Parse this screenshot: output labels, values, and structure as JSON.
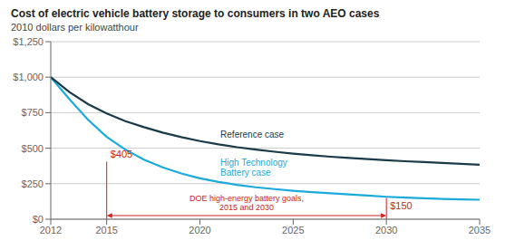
{
  "chart_data": {
    "type": "line",
    "title": "Cost of electric vehicle battery storage to consumers in two AEO cases",
    "subtitle": "2010 dollars per kilowatthour",
    "x": [
      2012,
      2013,
      2014,
      2015,
      2016,
      2017,
      2018,
      2019,
      2020,
      2021,
      2022,
      2023,
      2024,
      2025,
      2026,
      2027,
      2028,
      2029,
      2030,
      2031,
      2032,
      2033,
      2034,
      2035
    ],
    "series": [
      {
        "name": "High Technology\nBattery case",
        "color": "#1aabdb",
        "values": [
          1000,
          845,
          700,
          580,
          490,
          420,
          365,
          322,
          288,
          262,
          242,
          225,
          212,
          200,
          190,
          182,
          174,
          166,
          158,
          152,
          147,
          143,
          140,
          137
        ]
      },
      {
        "name": "Reference case",
        "color": "#1a3a4a",
        "values": [
          1000,
          895,
          810,
          745,
          690,
          648,
          610,
          578,
          550,
          527,
          507,
          490,
          475,
          462,
          450,
          440,
          431,
          423,
          415,
          408,
          402,
          396,
          390,
          384
        ]
      }
    ],
    "xlim": [
      2012,
      2035
    ],
    "xticks": [
      2012,
      2015,
      2020,
      2025,
      2030,
      2035
    ],
    "ylim": [
      0,
      1250
    ],
    "yticks": [
      {
        "value": 0,
        "label": "$0"
      },
      {
        "value": 250,
        "label": "$250"
      },
      {
        "value": 500,
        "label": "$500"
      },
      {
        "value": 750,
        "label": "$750"
      },
      {
        "value": 1000,
        "label": "$1,000"
      },
      {
        "value": 1250,
        "label": "$1,250"
      }
    ],
    "grid": true,
    "annotations": [
      {
        "text": "$405",
        "x": 2015,
        "y": 405,
        "color": "#cc2222"
      },
      {
        "text": "$150",
        "x": 2030,
        "y": 150,
        "color": "#cc2222"
      },
      {
        "text": "DOE high-energy battery goals,\n2015 and 2030",
        "x": [
          2015,
          2030
        ],
        "color": "#cc2222"
      }
    ]
  }
}
